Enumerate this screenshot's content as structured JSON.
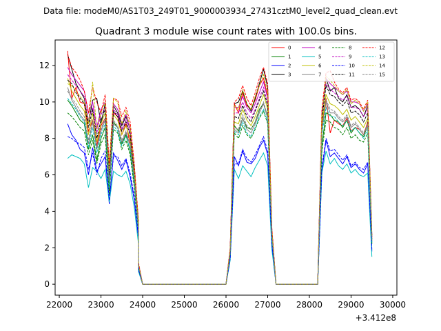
{
  "chart_data": {
    "type": "line",
    "suptitle": "Data file: modeM0/AS1T03_249T01_9000003934_27431cztM0_level2_quad_clean.evt",
    "title": "Quadrant 3 module wise count rates with 100.0s bins.",
    "xlabel": "",
    "ylabel": "",
    "offset_text": "+3.412e8",
    "xlim": [
      21900,
      30100
    ],
    "ylim": [
      -0.6,
      13.4
    ],
    "xticks": [
      22000,
      23000,
      24000,
      25000,
      26000,
      27000,
      28000,
      29000,
      30000
    ],
    "xtick_labels": [
      "22000",
      "23000",
      "24000",
      "25000",
      "26000",
      "27000",
      "28000",
      "29000",
      "30000"
    ],
    "yticks": [
      0,
      2,
      4,
      6,
      8,
      10,
      12
    ],
    "ytick_labels": [
      "0",
      "2",
      "4",
      "6",
      "8",
      "10",
      "12"
    ],
    "legend_position": "top-right",
    "segments": [
      {
        "start": 22200,
        "n": 18
      },
      {
        "start": 23900,
        "n": 2
      },
      {
        "start": 26000,
        "n": 2
      },
      {
        "start": 26200,
        "n": 9
      },
      {
        "start": 27100,
        "n": 2
      },
      {
        "start": 28200,
        "n": 2
      },
      {
        "start": 28400,
        "n": 13
      }
    ],
    "gap_value": 0.0,
    "series": [
      {
        "name": "0",
        "color": "#ff0000",
        "dash": "solid",
        "values": [
          12.8,
          10.2,
          10.8,
          10.0,
          9.9,
          8.4,
          9.0,
          7.6,
          8.7,
          9.1,
          5.4,
          9.4,
          9.2,
          8.2,
          8.8,
          7.7,
          6.0,
          3.2,
          1.1,
          0.0,
          0.0,
          1.8,
          9.9,
          9.4,
          10.5,
          9.8,
          9.6,
          10.1,
          10.9,
          11.3,
          10.3,
          2.9,
          0.0,
          0.0,
          8.7,
          10.2,
          8.3,
          9.0,
          8.8,
          8.7,
          9.1,
          8.4,
          8.6,
          8.5,
          8.2,
          8.9,
          2.5
        ]
      },
      {
        "name": "1",
        "color": "#008000",
        "dash": "solid",
        "values": [
          10.1,
          9.8,
          9.4,
          9.0,
          8.8,
          7.4,
          8.2,
          6.8,
          8.0,
          8.6,
          5.1,
          8.9,
          8.6,
          7.7,
          8.2,
          7.3,
          5.5,
          3.0,
          1.0,
          0.0,
          0.0,
          1.6,
          8.7,
          8.4,
          9.1,
          8.6,
          8.5,
          8.9,
          9.6,
          9.9,
          9.2,
          2.6,
          0.0,
          0.0,
          7.6,
          9.4,
          9.3,
          9.0,
          8.9,
          8.6,
          9.0,
          8.3,
          8.6,
          8.3,
          8.1,
          8.7,
          2.3
        ]
      },
      {
        "name": "2",
        "color": "#0000ff",
        "dash": "solid",
        "values": [
          8.8,
          8.2,
          7.9,
          7.4,
          7.2,
          6.0,
          7.5,
          6.2,
          6.6,
          7.0,
          4.4,
          7.2,
          6.8,
          6.3,
          6.8,
          5.9,
          4.6,
          2.5,
          0.8,
          0.0,
          0.0,
          1.4,
          7.0,
          6.5,
          7.3,
          6.7,
          6.6,
          6.9,
          7.5,
          7.9,
          7.1,
          2.1,
          0.0,
          0.0,
          6.2,
          7.9,
          7.0,
          7.2,
          6.9,
          6.6,
          7.0,
          6.4,
          6.6,
          6.3,
          6.1,
          6.6,
          1.8
        ]
      },
      {
        "name": "3",
        "color": "#000000",
        "dash": "solid",
        "values": [
          12.6,
          11.8,
          11.0,
          10.6,
          10.2,
          8.8,
          10.1,
          10.2,
          8.8,
          9.9,
          6.4,
          9.8,
          9.4,
          8.7,
          9.2,
          8.5,
          6.4,
          3.4,
          1.1,
          0.0,
          0.0,
          1.9,
          9.9,
          10.0,
          10.6,
          9.9,
          9.5,
          10.2,
          11.0,
          11.8,
          10.8,
          3.0,
          0.0,
          0.0,
          9.2,
          11.3,
          10.6,
          10.8,
          10.2,
          10.0,
          10.4,
          9.7,
          9.8,
          9.6,
          9.2,
          9.8,
          2.7
        ]
      },
      {
        "name": "4",
        "color": "#bf00bf",
        "dash": "solid",
        "values": [
          11.9,
          11.5,
          11.2,
          10.9,
          10.6,
          9.4,
          10.0,
          8.6,
          9.6,
          10.0,
          6.1,
          9.9,
          9.6,
          8.8,
          9.3,
          8.5,
          6.4,
          3.4,
          1.1,
          0.0,
          0.0,
          1.9,
          9.7,
          9.7,
          10.3,
          9.7,
          9.4,
          9.9,
          10.5,
          11.1,
          10.2,
          2.9,
          0.0,
          0.0,
          9.4,
          11.3,
          11.0,
          10.8,
          10.6,
          10.4,
          10.6,
          10.0,
          10.0,
          9.9,
          9.5,
          9.9,
          2.6
        ]
      },
      {
        "name": "5",
        "color": "#00bfbf",
        "dash": "solid",
        "values": [
          6.9,
          7.1,
          7.0,
          6.9,
          6.6,
          5.3,
          6.4,
          6.2,
          5.8,
          6.3,
          4.5,
          6.2,
          6.0,
          5.9,
          6.2,
          5.5,
          4.2,
          2.2,
          0.7,
          0.0,
          0.0,
          1.3,
          6.3,
          5.8,
          6.5,
          6.2,
          5.9,
          6.4,
          6.8,
          7.2,
          6.5,
          1.9,
          0.0,
          0.0,
          6.1,
          7.3,
          6.6,
          6.9,
          6.5,
          6.3,
          6.6,
          6.1,
          6.3,
          6.0,
          5.9,
          6.1,
          1.5
        ]
      },
      {
        "name": "6",
        "color": "#bfbf00",
        "dash": "solid",
        "values": [
          11.3,
          10.6,
          10.2,
          9.8,
          9.5,
          8.2,
          9.4,
          7.8,
          8.8,
          9.4,
          5.8,
          9.3,
          9.0,
          8.2,
          8.7,
          8.0,
          6.0,
          3.2,
          1.0,
          0.0,
          0.0,
          1.8,
          8.9,
          8.8,
          9.6,
          9.0,
          8.7,
          9.2,
          9.8,
          10.4,
          9.6,
          2.8,
          0.0,
          0.0,
          8.8,
          10.4,
          9.9,
          9.8,
          9.6,
          9.3,
          9.6,
          9.0,
          9.2,
          8.9,
          8.6,
          9.1,
          2.5
        ]
      },
      {
        "name": "7",
        "color": "#808080",
        "dash": "solid",
        "values": [
          10.8,
          10.1,
          9.7,
          9.3,
          9.0,
          7.7,
          8.9,
          7.4,
          8.4,
          9.0,
          5.5,
          8.8,
          8.6,
          7.8,
          8.3,
          7.6,
          5.7,
          3.0,
          1.0,
          0.0,
          0.0,
          1.7,
          8.5,
          8.3,
          9.1,
          8.5,
          8.3,
          8.8,
          9.4,
          9.9,
          9.1,
          2.6,
          0.0,
          0.0,
          8.4,
          10.0,
          9.4,
          9.4,
          9.1,
          8.9,
          9.2,
          8.6,
          8.8,
          8.5,
          8.2,
          8.7,
          2.4
        ]
      },
      {
        "name": "8",
        "color": "#008000",
        "dash": "dashed",
        "values": [
          9.4,
          9.2,
          8.9,
          8.6,
          8.4,
          7.1,
          7.9,
          6.6,
          7.7,
          8.2,
          4.9,
          8.5,
          8.3,
          7.4,
          7.9,
          7.1,
          5.3,
          2.9,
          0.9,
          0.0,
          0.0,
          1.6,
          8.3,
          8.0,
          8.7,
          8.2,
          8.0,
          8.5,
          9.1,
          9.5,
          8.8,
          2.5,
          0.0,
          0.0,
          7.3,
          9.0,
          8.9,
          8.6,
          8.5,
          8.2,
          8.6,
          8.0,
          8.2,
          7.9,
          7.8,
          8.3,
          2.2
        ]
      },
      {
        "name": "9",
        "color": "#bf00bf",
        "dash": "dashed",
        "values": [
          11.5,
          11.2,
          10.9,
          10.6,
          10.3,
          9.0,
          9.7,
          8.3,
          9.3,
          9.7,
          5.9,
          9.6,
          9.3,
          8.5,
          9.0,
          8.3,
          6.2,
          3.3,
          1.1,
          0.0,
          0.0,
          1.9,
          9.4,
          9.4,
          10.0,
          9.4,
          9.1,
          9.6,
          10.2,
          10.8,
          9.9,
          2.8,
          0.0,
          0.0,
          9.1,
          11.0,
          10.7,
          10.5,
          10.3,
          10.1,
          10.3,
          9.7,
          9.7,
          9.6,
          9.2,
          9.6,
          2.5
        ]
      },
      {
        "name": "10",
        "color": "#0000ff",
        "dash": "dashed",
        "values": [
          8.1,
          8.0,
          7.8,
          7.7,
          7.5,
          6.3,
          7.2,
          6.0,
          6.9,
          7.3,
          4.6,
          7.0,
          7.0,
          6.5,
          6.9,
          6.1,
          4.8,
          2.6,
          0.8,
          0.0,
          0.0,
          1.4,
          6.6,
          6.6,
          7.4,
          6.9,
          6.7,
          7.1,
          7.6,
          8.1,
          7.3,
          2.2,
          0.0,
          0.0,
          6.4,
          8.0,
          7.3,
          7.4,
          7.1,
          6.8,
          7.1,
          6.5,
          6.7,
          6.4,
          6.3,
          6.7,
          1.9
        ]
      },
      {
        "name": "11",
        "color": "#000000",
        "dash": "dashed",
        "values": [
          11.2,
          11.0,
          10.5,
          10.2,
          9.9,
          8.6,
          9.6,
          8.0,
          9.0,
          9.6,
          6.0,
          9.5,
          9.2,
          8.4,
          8.9,
          8.2,
          6.1,
          3.3,
          1.0,
          0.0,
          0.0,
          1.8,
          9.2,
          9.1,
          9.8,
          9.2,
          8.9,
          9.5,
          10.1,
          10.6,
          9.8,
          2.8,
          0.0,
          0.0,
          9.0,
          10.9,
          10.4,
          10.3,
          10.0,
          9.8,
          10.1,
          9.4,
          9.5,
          9.3,
          8.9,
          9.4,
          2.5
        ]
      },
      {
        "name": "12",
        "color": "#ff0000",
        "dash": "dashed",
        "values": [
          12.6,
          11.9,
          11.6,
          11.2,
          10.6,
          9.4,
          10.8,
          10.0,
          9.4,
          10.4,
          6.6,
          10.2,
          10.1,
          9.2,
          9.7,
          8.9,
          6.6,
          3.5,
          1.2,
          0.0,
          0.0,
          2.0,
          10.0,
          10.2,
          10.9,
          10.2,
          9.8,
          10.5,
          11.3,
          11.9,
          11.0,
          3.1,
          0.0,
          0.0,
          9.6,
          11.6,
          11.7,
          11.1,
          10.7,
          10.5,
          10.8,
          10.1,
          10.2,
          10.0,
          9.6,
          10.1,
          2.7
        ]
      },
      {
        "name": "13",
        "color": "#00bfbf",
        "dash": "dashed",
        "values": [
          10.2,
          9.9,
          9.6,
          9.2,
          8.9,
          7.5,
          8.6,
          7.2,
          8.2,
          8.8,
          5.3,
          8.7,
          8.4,
          7.6,
          8.1,
          7.4,
          5.6,
          3.0,
          1.0,
          0.0,
          0.0,
          1.7,
          8.4,
          8.2,
          8.9,
          8.3,
          8.1,
          8.6,
          9.2,
          9.6,
          8.9,
          2.6,
          0.0,
          0.0,
          8.2,
          9.7,
          9.2,
          9.2,
          8.9,
          8.7,
          9.0,
          8.4,
          8.6,
          8.3,
          8.0,
          8.5,
          2.3
        ]
      },
      {
        "name": "14",
        "color": "#bfbf00",
        "dash": "dashed",
        "values": [
          11.0,
          10.9,
          10.6,
          10.3,
          10.0,
          8.8,
          11.1,
          8.5,
          9.4,
          10.0,
          6.2,
          10.2,
          10.0,
          8.8,
          9.5,
          8.6,
          6.3,
          3.4,
          1.1,
          0.0,
          0.0,
          1.9,
          9.8,
          9.6,
          10.7,
          9.9,
          9.6,
          10.3,
          10.9,
          11.5,
          10.5,
          2.9,
          0.0,
          0.0,
          9.3,
          11.4,
          11.2,
          10.9,
          10.6,
          10.4,
          10.7,
          9.9,
          10.1,
          9.9,
          9.5,
          10.0,
          2.6
        ]
      },
      {
        "name": "15",
        "color": "#808080",
        "dash": "dashed",
        "values": [
          10.6,
          10.2,
          9.9,
          9.5,
          9.2,
          7.9,
          9.0,
          7.5,
          8.5,
          9.1,
          5.6,
          9.0,
          8.7,
          7.9,
          8.4,
          7.7,
          5.8,
          3.1,
          1.0,
          0.0,
          0.0,
          1.7,
          8.6,
          8.5,
          9.3,
          8.7,
          8.5,
          8.9,
          9.5,
          10.0,
          9.2,
          2.7,
          0.0,
          0.0,
          8.5,
          10.1,
          9.6,
          9.5,
          9.2,
          9.0,
          9.3,
          8.7,
          8.9,
          8.6,
          8.3,
          8.8,
          2.4
        ]
      }
    ]
  }
}
